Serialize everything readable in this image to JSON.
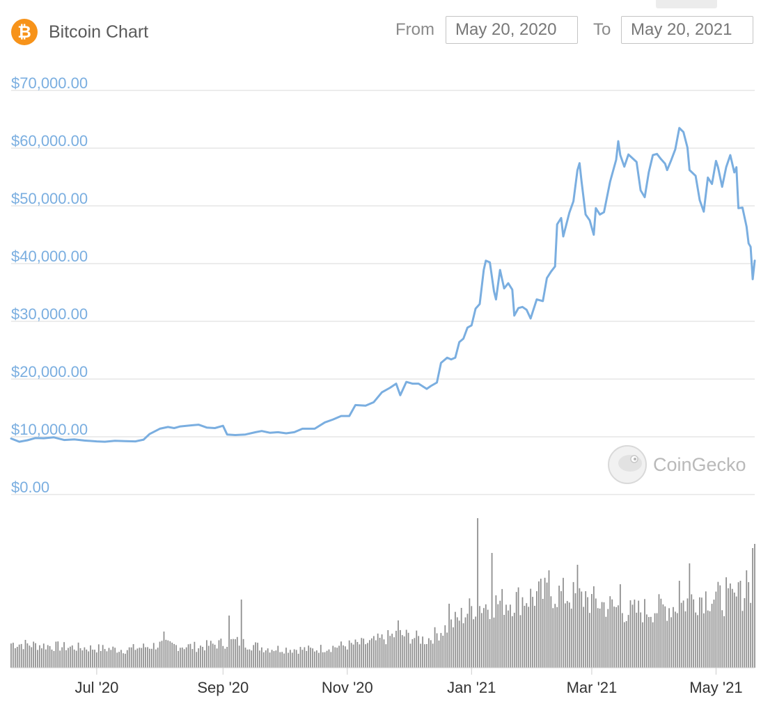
{
  "header": {
    "coin_symbol": "₿",
    "title": "Bitcoin Chart",
    "from_label": "From",
    "from_value": "May 20, 2020",
    "to_label": "To",
    "to_value": "May 20, 2021"
  },
  "watermark": {
    "brand": "CoinGecko",
    "icon": "gecko-logo-icon"
  },
  "colors": {
    "line": "#7aaee0",
    "volume": "#8e8e8e",
    "grid": "#e6e6e6",
    "ytick": "#7aaee0",
    "bitcoin": "#f7931a"
  },
  "chart_data": {
    "type": "line",
    "title": "Bitcoin Chart",
    "xlabel": "",
    "ylabel": "",
    "ylim": [
      0,
      70000
    ],
    "x_range": [
      "2020-05-20",
      "2021-05-20"
    ],
    "grid": true,
    "legend": "none",
    "y_ticks": [
      {
        "value": 0,
        "label": "$0.00"
      },
      {
        "value": 10000,
        "label": "$10,000.00"
      },
      {
        "value": 20000,
        "label": "$20,000.00"
      },
      {
        "value": 30000,
        "label": "$30,000.00"
      },
      {
        "value": 40000,
        "label": "$40,000.00"
      },
      {
        "value": 50000,
        "label": "$50,000.00"
      },
      {
        "value": 60000,
        "label": "$60,000.00"
      },
      {
        "value": 70000,
        "label": "$70,000.00"
      }
    ],
    "x_ticks": [
      {
        "date": "2020-07-01",
        "label": "Jul '20"
      },
      {
        "date": "2020-09-01",
        "label": "Sep '20"
      },
      {
        "date": "2020-11-01",
        "label": "Nov '20"
      },
      {
        "date": "2021-01-01",
        "label": "Jan '21"
      },
      {
        "date": "2021-03-01",
        "label": "Mar '21"
      },
      {
        "date": "2021-05-01",
        "label": "May '21"
      }
    ],
    "series": [
      {
        "values": [
          [
            "2020-05-20",
            9700
          ],
          [
            "2020-05-24",
            9150
          ],
          [
            "2020-05-28",
            9400
          ],
          [
            "2020-06-01",
            9800
          ],
          [
            "2020-06-05",
            9750
          ],
          [
            "2020-06-10",
            9900
          ],
          [
            "2020-06-15",
            9450
          ],
          [
            "2020-06-20",
            9550
          ],
          [
            "2020-06-25",
            9350
          ],
          [
            "2020-07-01",
            9200
          ],
          [
            "2020-07-05",
            9150
          ],
          [
            "2020-07-10",
            9300
          ],
          [
            "2020-07-15",
            9250
          ],
          [
            "2020-07-20",
            9200
          ],
          [
            "2020-07-24",
            9500
          ],
          [
            "2020-07-27",
            10500
          ],
          [
            "2020-08-01",
            11400
          ],
          [
            "2020-08-05",
            11700
          ],
          [
            "2020-08-08",
            11500
          ],
          [
            "2020-08-11",
            11800
          ],
          [
            "2020-08-17",
            12000
          ],
          [
            "2020-08-20",
            12100
          ],
          [
            "2020-08-24",
            11600
          ],
          [
            "2020-08-28",
            11500
          ],
          [
            "2020-09-01",
            11900
          ],
          [
            "2020-09-03",
            10400
          ],
          [
            "2020-09-07",
            10300
          ],
          [
            "2020-09-12",
            10400
          ],
          [
            "2020-09-17",
            10800
          ],
          [
            "2020-09-20",
            11000
          ],
          [
            "2020-09-24",
            10700
          ],
          [
            "2020-09-28",
            10800
          ],
          [
            "2020-10-02",
            10600
          ],
          [
            "2020-10-06",
            10800
          ],
          [
            "2020-10-10",
            11400
          ],
          [
            "2020-10-16",
            11400
          ],
          [
            "2020-10-21",
            12500
          ],
          [
            "2020-10-25",
            13000
          ],
          [
            "2020-10-29",
            13600
          ],
          [
            "2020-11-02",
            13600
          ],
          [
            "2020-11-05",
            15500
          ],
          [
            "2020-11-10",
            15400
          ],
          [
            "2020-11-14",
            16000
          ],
          [
            "2020-11-18",
            17700
          ],
          [
            "2020-11-22",
            18500
          ],
          [
            "2020-11-25",
            19200
          ],
          [
            "2020-11-27",
            17200
          ],
          [
            "2020-11-30",
            19500
          ],
          [
            "2020-12-03",
            19200
          ],
          [
            "2020-12-06",
            19200
          ],
          [
            "2020-12-10",
            18300
          ],
          [
            "2020-12-12",
            18800
          ],
          [
            "2020-12-15",
            19400
          ],
          [
            "2020-12-17",
            22800
          ],
          [
            "2020-12-20",
            23700
          ],
          [
            "2020-12-22",
            23400
          ],
          [
            "2020-12-24",
            23700
          ],
          [
            "2020-12-26",
            26400
          ],
          [
            "2020-12-28",
            27000
          ],
          [
            "2020-12-30",
            28900
          ],
          [
            "2021-01-01",
            29300
          ],
          [
            "2021-01-03",
            32200
          ],
          [
            "2021-01-05",
            33000
          ],
          [
            "2021-01-07",
            38900
          ],
          [
            "2021-01-08",
            40500
          ],
          [
            "2021-01-10",
            40200
          ],
          [
            "2021-01-12",
            35200
          ],
          [
            "2021-01-13",
            33800
          ],
          [
            "2021-01-15",
            38900
          ],
          [
            "2021-01-17",
            35700
          ],
          [
            "2021-01-19",
            36600
          ],
          [
            "2021-01-21",
            35500
          ],
          [
            "2021-01-22",
            31000
          ],
          [
            "2021-01-24",
            32300
          ],
          [
            "2021-01-26",
            32500
          ],
          [
            "2021-01-28",
            32000
          ],
          [
            "2021-01-30",
            30500
          ],
          [
            "2021-02-02",
            33800
          ],
          [
            "2021-02-05",
            33500
          ],
          [
            "2021-02-07",
            37500
          ],
          [
            "2021-02-09",
            38600
          ],
          [
            "2021-02-11",
            39500
          ],
          [
            "2021-02-12",
            46800
          ],
          [
            "2021-02-14",
            47900
          ],
          [
            "2021-02-15",
            44700
          ],
          [
            "2021-02-18",
            48800
          ],
          [
            "2021-02-20",
            50800
          ],
          [
            "2021-02-22",
            56200
          ],
          [
            "2021-02-23",
            57400
          ],
          [
            "2021-02-24",
            54200
          ],
          [
            "2021-02-26",
            48500
          ],
          [
            "2021-02-28",
            47500
          ],
          [
            "2021-03-02",
            45000
          ],
          [
            "2021-03-03",
            49600
          ],
          [
            "2021-03-05",
            48500
          ],
          [
            "2021-03-07",
            48900
          ],
          [
            "2021-03-10",
            54200
          ],
          [
            "2021-03-13",
            58000
          ],
          [
            "2021-03-14",
            61200
          ],
          [
            "2021-03-15",
            58800
          ],
          [
            "2021-03-17",
            56800
          ],
          [
            "2021-03-19",
            58900
          ],
          [
            "2021-03-23",
            57600
          ],
          [
            "2021-03-25",
            52700
          ],
          [
            "2021-03-27",
            51500
          ],
          [
            "2021-03-29",
            55800
          ],
          [
            "2021-03-31",
            58800
          ],
          [
            "2021-04-02",
            59000
          ],
          [
            "2021-04-04",
            58100
          ],
          [
            "2021-04-06",
            57300
          ],
          [
            "2021-04-07",
            56200
          ],
          [
            "2021-04-09",
            57900
          ],
          [
            "2021-04-11",
            59800
          ],
          [
            "2021-04-13",
            63500
          ],
          [
            "2021-04-15",
            62800
          ],
          [
            "2021-04-17",
            60100
          ],
          [
            "2021-04-18",
            56200
          ],
          [
            "2021-04-21",
            55200
          ],
          [
            "2021-04-23",
            51000
          ],
          [
            "2021-04-25",
            49000
          ],
          [
            "2021-04-27",
            54900
          ],
          [
            "2021-04-29",
            53800
          ],
          [
            "2021-05-01",
            57800
          ],
          [
            "2021-05-02",
            56700
          ],
          [
            "2021-05-04",
            53300
          ],
          [
            "2021-05-06",
            56700
          ],
          [
            "2021-05-08",
            58800
          ],
          [
            "2021-05-10",
            55800
          ],
          [
            "2021-05-11",
            56700
          ],
          [
            "2021-05-12",
            49600
          ],
          [
            "2021-05-14",
            49700
          ],
          [
            "2021-05-16",
            46400
          ],
          [
            "2021-05-17",
            43500
          ],
          [
            "2021-05-18",
            42900
          ],
          [
            "2021-05-19",
            37300
          ],
          [
            "2021-05-20",
            40500
          ]
        ]
      }
    ],
    "volume": {
      "type": "bar",
      "keyframes": [
        [
          "2020-05-20",
          35
        ],
        [
          "2020-06-15",
          30
        ],
        [
          "2020-07-15",
          26
        ],
        [
          "2020-08-01",
          33
        ],
        [
          "2020-08-20",
          30
        ],
        [
          "2020-09-07",
          38
        ],
        [
          "2020-09-22",
          28
        ],
        [
          "2020-10-15",
          26
        ],
        [
          "2020-10-25",
          30
        ],
        [
          "2020-11-12",
          36
        ],
        [
          "2020-11-26",
          48
        ],
        [
          "2020-12-10",
          40
        ],
        [
          "2020-12-22",
          62
        ],
        [
          "2021-01-02",
          88
        ],
        [
          "2021-01-20",
          96
        ],
        [
          "2021-02-10",
          108
        ],
        [
          "2021-03-01",
          96
        ],
        [
          "2021-03-20",
          80
        ],
        [
          "2021-04-10",
          88
        ],
        [
          "2021-04-25",
          104
        ],
        [
          "2021-05-10",
          96
        ],
        [
          "2021-05-20",
          125
        ]
      ],
      "spikes": [
        [
          "2020-08-03",
          52
        ],
        [
          "2020-09-04",
          75
        ],
        [
          "2020-09-10",
          98
        ],
        [
          "2020-11-26",
          68
        ],
        [
          "2020-12-21",
          92
        ],
        [
          "2021-01-04",
          215
        ],
        [
          "2021-01-11",
          165
        ],
        [
          "2021-02-08",
          140
        ],
        [
          "2021-02-22",
          148
        ],
        [
          "2021-02-26",
          110
        ],
        [
          "2021-03-15",
          120
        ],
        [
          "2021-04-13",
          125
        ],
        [
          "2021-04-18",
          150
        ],
        [
          "2021-05-06",
          130
        ],
        [
          "2021-05-13",
          125
        ],
        [
          "2021-05-16",
          140
        ],
        [
          "2021-05-19",
          172
        ],
        [
          "2021-05-20",
          178
        ]
      ]
    }
  }
}
